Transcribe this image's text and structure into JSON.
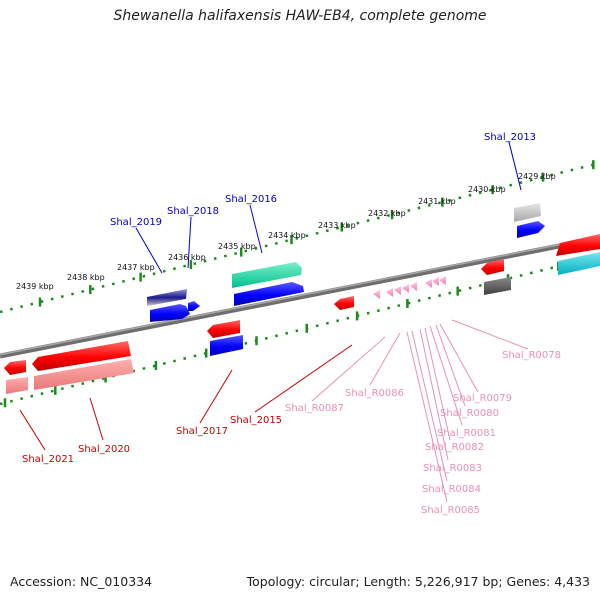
{
  "title": "Shewanella halifaxensis HAW-EB4, complete genome",
  "footer": {
    "accession": "Accession: NC_010334",
    "summary": "Topology: circular; Length: 5,226,917 bp; Genes: 4,433"
  },
  "colors": {
    "backbone": "#7a7a7a",
    "tick": "#1d8a1d",
    "gene_red": "#ff0000",
    "gene_blue": "#0000ff",
    "gene_pink": "#ee82b4",
    "gene_teal": "#00c8a0",
    "gene_cyan": "#00b4c8",
    "gene_grey": "#bbbbbb",
    "gene_dark": "#555555",
    "gene_navy": "#1a1a8c",
    "label_blue": "#0000cc",
    "label_red": "#cc0000",
    "label_pink": "#e890b8"
  },
  "scale_labels": [
    "2439 kbp",
    "2438 kbp",
    "2437 kbp",
    "2436 kbp",
    "2435 kbp",
    "2434 kbp",
    "2433 kbp",
    "2432 kbp",
    "2431 kbp",
    "2430 kbp",
    "2429 kbp"
  ],
  "gene_labels": {
    "top": [
      "Shal_2019",
      "Shal_2018",
      "Shal_2016",
      "Shal_2013"
    ],
    "bottom_red": [
      "Shal_2021",
      "Shal_2020",
      "Shal_2017",
      "Shal_2015"
    ],
    "bottom_pink": [
      "Shal_R0087",
      "Shal_R0086",
      "Shal_R0079",
      "Shal_R0080",
      "Shal_R0081",
      "Shal_R0082",
      "Shal_R0083",
      "Shal_R0084",
      "Shal_R0085",
      "Shal_R0078"
    ]
  }
}
